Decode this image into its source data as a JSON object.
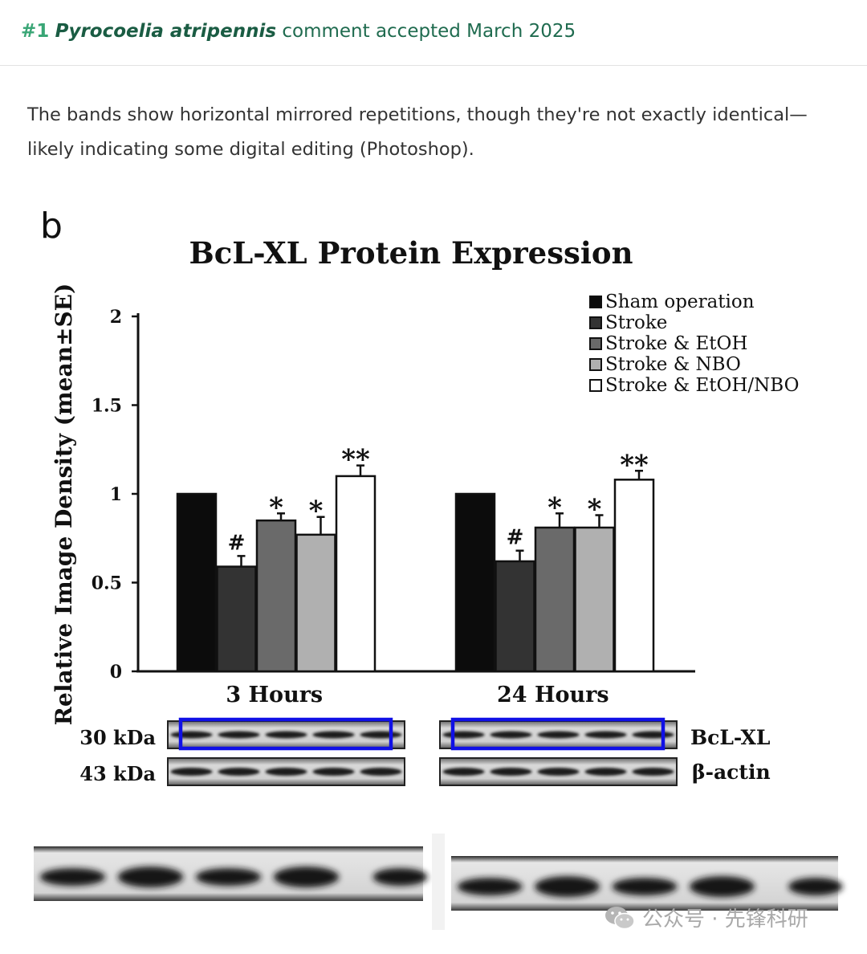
{
  "header": {
    "number": "#1",
    "species": "Pyrocoelia atripennis",
    "text": "comment accepted March 2025"
  },
  "comment": "The bands show horizontal mirrored repetitions, though they're not exactly identical—likely indicating some digital editing (Photoshop).",
  "figure": {
    "panel_label": "b",
    "bands": {
      "label_top_kda": "30 kDa",
      "label_bottom_kda": "43 kDa",
      "label_top_protein": "BcL-XL",
      "label_bottom_protein": "β-actin",
      "highlight_color": "#1010e6"
    }
  },
  "chart_data": {
    "type": "bar",
    "title": "BcL-XL Protein Expression",
    "ylabel": "Relative Image Density (mean±SE)",
    "xlabel": "",
    "ylim": [
      0,
      2
    ],
    "yticks": [
      "0",
      "0.5",
      "1",
      "1.5",
      "2"
    ],
    "ytick_values": [
      0,
      0.5,
      1,
      1.5,
      2
    ],
    "categories": [
      "3 Hours",
      "24 Hours"
    ],
    "legend_position": "top-right",
    "grid": false,
    "series": [
      {
        "name": "Sham operation",
        "color": "#0c0c0c",
        "values": [
          1.0,
          1.0
        ],
        "errors": [
          0,
          0
        ],
        "marks": [
          "",
          ""
        ]
      },
      {
        "name": "Stroke",
        "color": "#333333",
        "values": [
          0.59,
          0.62
        ],
        "errors": [
          0.06,
          0.06
        ],
        "marks": [
          "#",
          "#"
        ]
      },
      {
        "name": "Stroke & EtOH",
        "color": "#6a6a6a",
        "values": [
          0.85,
          0.81
        ],
        "errors": [
          0.04,
          0.08
        ],
        "marks": [
          "*",
          "*"
        ]
      },
      {
        "name": "Stroke & NBO",
        "color": "#b0b0b0",
        "values": [
          0.77,
          0.81
        ],
        "errors": [
          0.1,
          0.07
        ],
        "marks": [
          "*",
          "*"
        ]
      },
      {
        "name": "Stroke & EtOH/NBO",
        "color": "#ffffff",
        "values": [
          1.1,
          1.08
        ],
        "errors": [
          0.06,
          0.05
        ],
        "marks": [
          "**",
          "**"
        ]
      }
    ]
  },
  "watermark": {
    "text": "公众号 · 先锋科研"
  }
}
